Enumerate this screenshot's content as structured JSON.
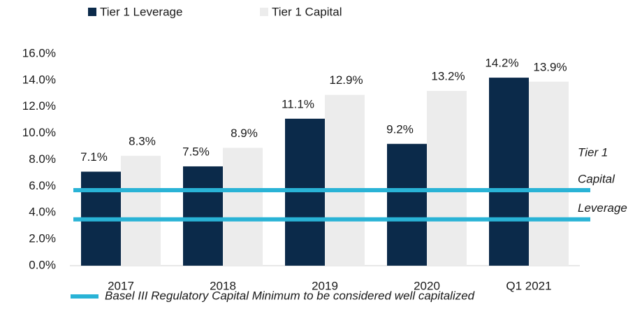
{
  "chart_data": {
    "type": "bar",
    "categories": [
      "2017",
      "2018",
      "2019",
      "2020",
      "Q1 2021"
    ],
    "series": [
      {
        "name": "Tier 1 Leverage",
        "color": "#0b2a4a",
        "values": [
          7.1,
          7.5,
          11.1,
          9.2,
          14.2
        ],
        "value_labels": [
          "7.1%",
          "7.5%",
          "11.1%",
          "9.2%",
          "14.2%"
        ]
      },
      {
        "name": "Tier 1 Capital",
        "color": "#ececec",
        "values": [
          8.3,
          8.9,
          12.9,
          13.2,
          13.9
        ],
        "value_labels": [
          "8.3%",
          "8.9%",
          "12.9%",
          "13.2%",
          "13.9%"
        ]
      }
    ],
    "reference_lines": [
      {
        "label_lines": [
          "Tier 1",
          "Capital"
        ],
        "value": 5.7
      },
      {
        "label_lines": [
          "Leverage"
        ],
        "value": 3.5
      }
    ],
    "reference_legend": "Basel III Regulatory Capital Minimum to be considered well capitalized",
    "reference_color": "#29b3d6",
    "ylim": [
      0,
      16
    ],
    "yticks": [
      {
        "value": 0,
        "label": "0.0%"
      },
      {
        "value": 2,
        "label": "2.0%"
      },
      {
        "value": 4,
        "label": "4.0%"
      },
      {
        "value": 6,
        "label": "6.0%"
      },
      {
        "value": 8,
        "label": "8.0%"
      },
      {
        "value": 10,
        "label": "10.0%"
      },
      {
        "value": 12,
        "label": "12.0%"
      },
      {
        "value": 14,
        "label": "14.0%"
      },
      {
        "value": 16,
        "label": "16.0%"
      }
    ],
    "grid": false
  }
}
